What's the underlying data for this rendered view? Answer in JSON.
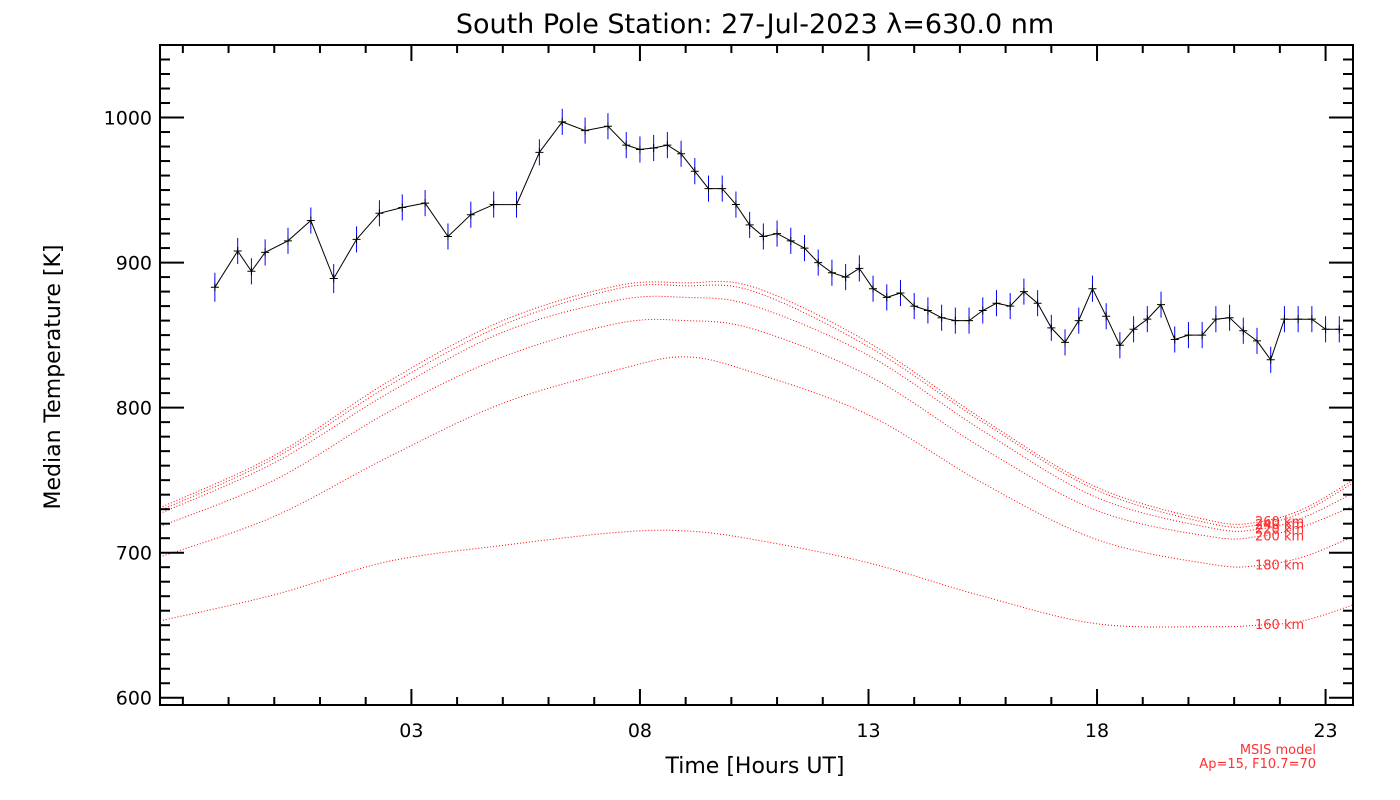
{
  "chart_data": {
    "type": "line",
    "title": "South Pole Station: 27-Jul-2023 λ=630.0 nm",
    "xlabel": "Time [Hours UT]",
    "ylabel": "Median Temperature [K]",
    "xlim": [
      -2.5,
      23.6
    ],
    "ylim": [
      595,
      1050
    ],
    "xticks": [
      3,
      8,
      13,
      18,
      23
    ],
    "xtick_labels": [
      "03",
      "08",
      "13",
      "18",
      "23"
    ],
    "yticks": [
      600,
      700,
      800,
      900,
      1000
    ],
    "ytick_labels": [
      "600",
      "700",
      "800",
      "900",
      "1000"
    ],
    "grid": false,
    "series": [
      {
        "name": "Median Temperature",
        "color": "#000000",
        "error_color": "#0000ff",
        "x": [
          -1.3,
          -0.8,
          -0.5,
          -0.2,
          0.3,
          0.8,
          1.3,
          1.8,
          2.3,
          2.8,
          3.3,
          3.8,
          4.3,
          4.8,
          5.3,
          5.8,
          6.3,
          6.8,
          7.3,
          7.7,
          8.0,
          8.3,
          8.6,
          8.9,
          9.2,
          9.5,
          9.8,
          10.1,
          10.4,
          10.7,
          11.0,
          11.3,
          11.6,
          11.9,
          12.2,
          12.5,
          12.8,
          13.1,
          13.4,
          13.7,
          14.0,
          14.3,
          14.6,
          14.9,
          15.2,
          15.5,
          15.8,
          16.1,
          16.4,
          16.7,
          17.0,
          17.3,
          17.6,
          17.9,
          18.2,
          18.5,
          18.8,
          19.1,
          19.4,
          19.7,
          20.0,
          20.3,
          20.6,
          20.9,
          21.2,
          21.5,
          21.8,
          22.1,
          22.4,
          22.7,
          23.0,
          23.3
        ],
        "y": [
          883,
          908,
          894,
          907,
          915,
          929,
          889,
          916,
          934,
          938,
          941,
          918,
          933,
          940,
          940,
          976,
          997,
          991,
          994,
          981,
          978,
          979,
          981,
          975,
          963,
          951,
          951,
          940,
          926,
          918,
          920,
          915,
          910,
          900,
          893,
          890,
          896,
          882,
          876,
          879,
          870,
          867,
          862,
          860,
          860,
          867,
          872,
          870,
          880,
          872,
          855,
          845,
          860,
          882,
          863,
          843,
          854,
          861,
          871,
          847,
          850,
          850,
          861,
          862,
          853,
          846,
          833,
          861,
          861,
          861,
          854,
          854
        ],
        "error": [
          10,
          9,
          9,
          9,
          9,
          9,
          10,
          9,
          9,
          9,
          9,
          9,
          9,
          9,
          9,
          9,
          9,
          9,
          9,
          9,
          9,
          9,
          9,
          9,
          9,
          9,
          9,
          9,
          9,
          9,
          9,
          9,
          9,
          9,
          9,
          9,
          9,
          9,
          9,
          9,
          9,
          9,
          9,
          9,
          9,
          9,
          9,
          9,
          9,
          9,
          9,
          9,
          9,
          9,
          9,
          9,
          9,
          9,
          9,
          9,
          9,
          9,
          9,
          9,
          9,
          9,
          9,
          9,
          9,
          9,
          9,
          9
        ]
      }
    ],
    "msis_model": {
      "color": "#ff0000",
      "x": [
        -2.5,
        0.0,
        2.5,
        5.0,
        7.5,
        9.0,
        10.5,
        13.0,
        15.5,
        18.0,
        20.5,
        21.5,
        22.5,
        23.6
      ],
      "curves": [
        {
          "label": "260 km",
          "y": [
            731,
            767,
            818,
            860,
            884,
            886,
            883,
            845,
            792,
            745,
            722,
            721,
            730,
            750
          ]
        },
        {
          "label": "240 km",
          "y": [
            729,
            765,
            815,
            857,
            882,
            884,
            880,
            842,
            790,
            743,
            720,
            719,
            728,
            748
          ]
        },
        {
          "label": "220 km",
          "y": [
            727,
            762,
            810,
            852,
            874,
            876,
            870,
            836,
            784,
            738,
            717,
            716,
            724,
            741
          ]
        },
        {
          "label": "200 km",
          "y": [
            718,
            750,
            797,
            835,
            858,
            860,
            854,
            822,
            772,
            729,
            711,
            711,
            718,
            732
          ]
        },
        {
          "label": "180 km",
          "y": [
            697,
            725,
            766,
            803,
            826,
            835,
            824,
            795,
            748,
            709,
            692,
            691,
            697,
            711
          ]
        },
        {
          "label": "160 km",
          "y": [
            653,
            671,
            694,
            705,
            714,
            715,
            709,
            693,
            670,
            651,
            649,
            650,
            653,
            664
          ]
        }
      ]
    },
    "notes": [
      "MSIS model",
      "Ap=15, F10.7=70"
    ]
  }
}
